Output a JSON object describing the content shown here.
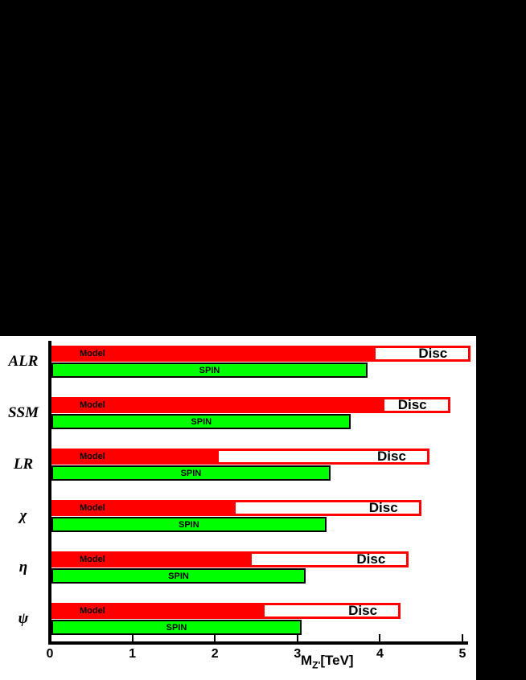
{
  "chart_data": {
    "type": "bar",
    "orientation": "horizontal",
    "title": "",
    "categories": [
      "ALR",
      "SSM",
      "LR",
      "χ",
      "η",
      "ψ"
    ],
    "series": [
      {
        "name": "Disc",
        "color": "#ffffff",
        "border_color": "#ff0000",
        "values": [
          5.1,
          4.85,
          4.6,
          4.5,
          4.35,
          4.25
        ]
      },
      {
        "name": "Model",
        "color": "#ff0000",
        "values": [
          3.95,
          4.05,
          2.05,
          2.25,
          2.45,
          2.6
        ]
      },
      {
        "name": "SPIN",
        "color": "#00ff00",
        "values": [
          3.85,
          3.65,
          3.4,
          3.35,
          3.1,
          3.05
        ]
      }
    ],
    "xlabel": {
      "prefix": "M",
      "sub": "Z'",
      "suffix": "[TeV]"
    },
    "xlim": [
      0,
      5
    ],
    "xticks": [
      0,
      1,
      2,
      3,
      4,
      5
    ],
    "grid": false,
    "legend": "labels drawn inside bars"
  },
  "colors": {
    "background": "#000000",
    "canvas": "#ffffff",
    "axis": "#000000",
    "model_bar": "#ff0000",
    "spin_bar": "#00ff00",
    "disc_outline": "#ff0000",
    "text": "#000000"
  }
}
